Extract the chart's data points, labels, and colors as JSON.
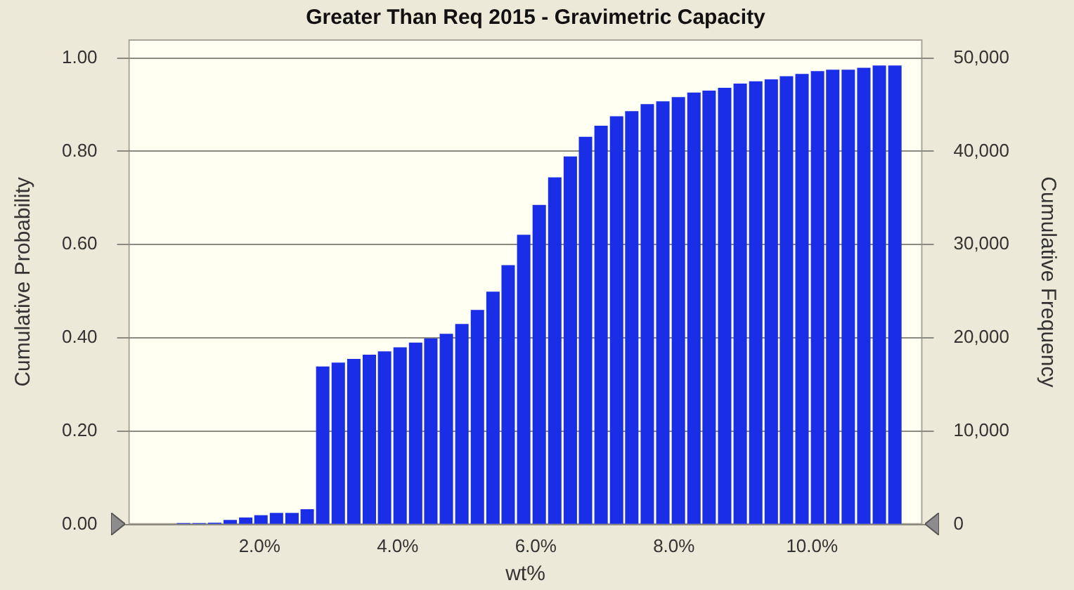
{
  "chart_data": {
    "type": "histogram",
    "title": "Greater Than Req 2015 - Gravimetric Capacity",
    "xlabel": "wt%",
    "ylabel": "Cumulative Probability",
    "y2label": "Cumulative Frequency",
    "bins": [
      0.79,
      1.01,
      1.24,
      1.46,
      1.69,
      1.91,
      2.13,
      2.36,
      2.58,
      2.8,
      3.03,
      3.25,
      3.48,
      3.7,
      3.92,
      4.15,
      4.37,
      4.59,
      4.82,
      5.04,
      5.27,
      5.49,
      5.71,
      5.94,
      6.16,
      6.39,
      6.61,
      6.83,
      7.06,
      7.28,
      7.5,
      7.73,
      7.95,
      8.18,
      8.4,
      8.62,
      8.85,
      9.07,
      9.3,
      9.52,
      9.74,
      9.97,
      10.19,
      10.41,
      10.64,
      10.86,
      11.09,
      11.31
    ],
    "values": [
      0.003,
      0.003,
      0.004,
      0.01,
      0.015,
      0.02,
      0.025,
      0.025,
      0.033,
      0.339,
      0.347,
      0.355,
      0.364,
      0.371,
      0.38,
      0.39,
      0.399,
      0.409,
      0.43,
      0.46,
      0.499,
      0.556,
      0.621,
      0.685,
      0.744,
      0.789,
      0.831,
      0.855,
      0.875,
      0.886,
      0.901,
      0.907,
      0.916,
      0.926,
      0.93,
      0.936,
      0.945,
      0.95,
      0.954,
      0.961,
      0.966,
      0.972,
      0.975,
      0.975,
      0.979,
      0.984,
      0.984
    ],
    "color": "#1a2ee8",
    "xlim": [
      0.1,
      11.6
    ],
    "xticks": [
      {
        "value": 2,
        "label": "2.0%"
      },
      {
        "value": 4,
        "label": "4.0%"
      },
      {
        "value": 6,
        "label": "6.0%"
      },
      {
        "value": 8,
        "label": "8.0%"
      },
      {
        "value": 10,
        "label": "10.0%"
      }
    ],
    "ylim": [
      0,
      1.04
    ],
    "yticks": [
      {
        "value": 0,
        "label": "0.00"
      },
      {
        "value": 0.2,
        "label": "0.20"
      },
      {
        "value": 0.4,
        "label": "0.40"
      },
      {
        "value": 0.6,
        "label": "0.60"
      },
      {
        "value": 0.8,
        "label": "0.80"
      },
      {
        "value": 1,
        "label": "1.00"
      }
    ],
    "y2lim": [
      0,
      52000
    ],
    "y2ticks": [
      0,
      {
        "value": 10000,
        "label": "10,000"
      },
      {
        "value": 20000,
        "label": "20,000"
      },
      {
        "value": 30000,
        "label": "30,000"
      },
      {
        "value": 40000,
        "label": "40,000"
      },
      {
        "value": 50000,
        "label": "50,000"
      }
    ],
    "grid": "y",
    "legend": false
  }
}
